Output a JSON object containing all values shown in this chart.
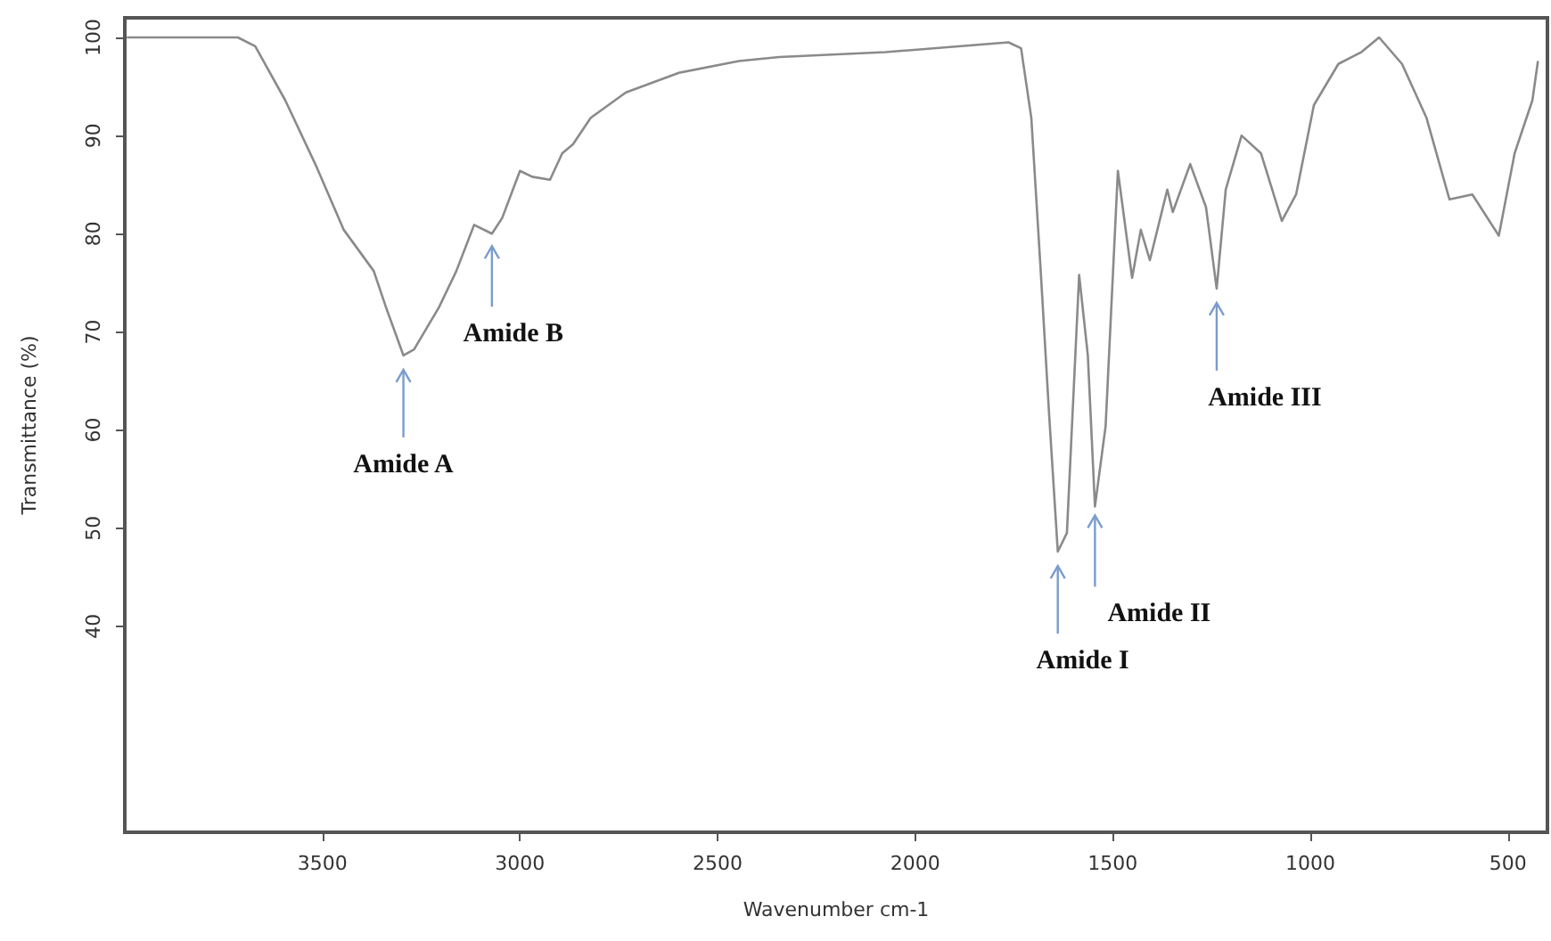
{
  "chart_data": {
    "type": "line",
    "xlabel": "Wavenumber cm-1",
    "ylabel": "Transmittance (%)",
    "xlim": [
      4000,
      400
    ],
    "ylim": [
      19,
      102
    ],
    "xticks": [
      3500,
      3000,
      2500,
      2000,
      1500,
      1000,
      500
    ],
    "yticks": [
      40,
      50,
      60,
      70,
      80,
      90,
      100
    ],
    "series": [
      {
        "color": "#8a8a8a",
        "x": [
          3995,
          3714,
          3670,
          3594,
          3518,
          3446,
          3370,
          3339,
          3295,
          3268,
          3205,
          3161,
          3116,
          3071,
          3045,
          3000,
          2969,
          2924,
          2893,
          2866,
          2821,
          2732,
          2598,
          2446,
          2344,
          2076,
          1764,
          1732,
          1706,
          1683,
          1661,
          1639,
          1616,
          1585,
          1563,
          1545,
          1518,
          1487,
          1451,
          1429,
          1406,
          1362,
          1348,
          1304,
          1264,
          1237,
          1214,
          1174,
          1125,
          1072,
          1036,
          991,
          929,
          871,
          826,
          768,
          706,
          648,
          590,
          523,
          483,
          438,
          424
        ],
        "values": [
          100,
          100,
          99.1,
          93.6,
          87.1,
          80.4,
          76.2,
          72.5,
          67.6,
          68.2,
          72.5,
          76.2,
          80.9,
          80.0,
          81.6,
          86.4,
          85.8,
          85.5,
          88.2,
          89.1,
          91.8,
          94.4,
          96.4,
          97.6,
          98.0,
          98.5,
          99.5,
          98.9,
          91.8,
          76.7,
          61.6,
          47.6,
          49.5,
          75.8,
          67.6,
          52.2,
          60.4,
          86.4,
          75.5,
          80.4,
          77.3,
          84.5,
          82.2,
          87.1,
          82.7,
          74.4,
          84.5,
          90.0,
          88.2,
          81.3,
          84.0,
          93.1,
          97.3,
          98.5,
          100,
          97.3,
          91.8,
          83.5,
          84.0,
          79.8,
          88.2,
          93.6,
          97.6
        ]
      }
    ],
    "annotations": [
      {
        "text": "Amide A",
        "x": 3295,
        "y": 67.6
      },
      {
        "text": "Amide B",
        "x": 3071,
        "y": 80.0
      },
      {
        "text": "Amide I",
        "x": 1639,
        "y": 47.6
      },
      {
        "text": "Amide II",
        "x": 1545,
        "y": 52.2
      },
      {
        "text": "Amide III",
        "x": 1237,
        "y": 74.4
      }
    ]
  }
}
